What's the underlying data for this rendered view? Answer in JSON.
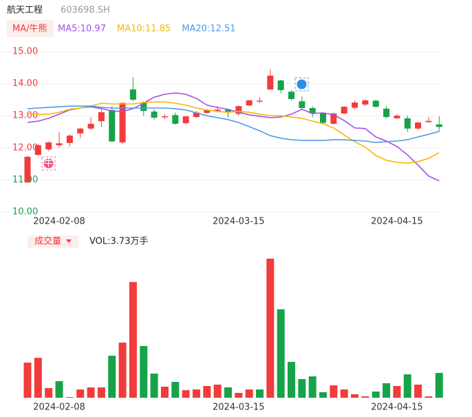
{
  "chart_data": [
    {
      "type": "candlestick",
      "title": "航天工程",
      "subtitle": "603698.SH",
      "button": "MA/牛熊",
      "categories": [
        null,
        null,
        null,
        "2024-02-08",
        null,
        null,
        null,
        null,
        null,
        null,
        null,
        null,
        null,
        null,
        null,
        null,
        null,
        null,
        null,
        null,
        "2024-03-15",
        null,
        null,
        null,
        null,
        null,
        null,
        null,
        null,
        null,
        null,
        null,
        null,
        null,
        null,
        "2024-04-15",
        null,
        null,
        null,
        null
      ],
      "open": [
        10.92,
        11.78,
        11.95,
        12.08,
        12.15,
        12.45,
        12.6,
        12.83,
        13.18,
        12.17,
        13.82,
        13.4,
        13.13,
        12.95,
        13.02,
        12.77,
        12.96,
        13.09,
        13.15,
        13.19,
        13.06,
        13.32,
        13.44,
        13.82,
        14.1,
        13.75,
        13.45,
        13.24,
        13.08,
        12.75,
        13.07,
        13.25,
        13.35,
        13.47,
        13.22,
        12.92,
        12.92,
        12.6,
        12.8,
        12.73
      ],
      "high": [
        11.75,
        12.12,
        12.2,
        12.5,
        12.42,
        12.62,
        12.95,
        13.2,
        13.3,
        13.42,
        14.2,
        13.45,
        13.2,
        13.05,
        13.1,
        13.0,
        13.15,
        13.2,
        13.3,
        13.2,
        13.32,
        13.5,
        13.58,
        14.45,
        14.12,
        13.8,
        13.6,
        13.3,
        13.1,
        13.1,
        13.3,
        13.48,
        13.5,
        13.5,
        13.3,
        13.05,
        13.0,
        12.8,
        12.95,
        12.98
      ],
      "low": [
        10.9,
        11.75,
        11.9,
        12.0,
        12.05,
        12.3,
        12.55,
        12.65,
        12.18,
        12.12,
        13.45,
        13.0,
        12.88,
        12.9,
        12.72,
        12.72,
        12.94,
        13.05,
        13.1,
        12.95,
        13.0,
        13.3,
        13.4,
        13.8,
        13.7,
        13.48,
        13.22,
        12.95,
        12.75,
        12.72,
        13.05,
        13.2,
        13.3,
        13.25,
        12.92,
        12.9,
        12.5,
        12.55,
        12.8,
        12.5
      ],
      "close": [
        11.72,
        12.08,
        12.17,
        12.14,
        12.38,
        12.6,
        12.75,
        13.11,
        12.2,
        13.4,
        13.5,
        13.15,
        12.94,
        12.98,
        12.75,
        12.98,
        13.1,
        13.17,
        13.19,
        13.11,
        13.3,
        13.48,
        13.47,
        14.25,
        13.8,
        13.52,
        13.24,
        13.07,
        12.78,
        13.07,
        13.28,
        13.41,
        13.48,
        13.28,
        12.96,
        13.0,
        12.6,
        12.79,
        12.84,
        12.65
      ],
      "up_color": "#f23b3b",
      "down_color": "#16a34a",
      "series": [
        {
          "name": "MA5:10.97",
          "color": "#a64ee8",
          "values": [
            12.79,
            12.83,
            12.92,
            13.05,
            13.18,
            13.24,
            13.28,
            13.22,
            13.15,
            13.13,
            13.22,
            13.39,
            13.58,
            13.67,
            13.71,
            13.67,
            13.54,
            13.33,
            13.26,
            13.2,
            13.11,
            13.03,
            12.98,
            12.94,
            12.96,
            13.05,
            13.2,
            13.07,
            13.09,
            13.03,
            12.85,
            12.62,
            12.6,
            12.34,
            12.21,
            12.04,
            11.78,
            11.46,
            11.12,
            10.97
          ]
        },
        {
          "name": "MA10:11.85",
          "color": "#f5b800",
          "values": [
            13.07,
            13.05,
            13.05,
            13.11,
            13.2,
            13.24,
            13.3,
            13.39,
            13.37,
            13.37,
            13.37,
            13.41,
            13.43,
            13.43,
            13.39,
            13.33,
            13.24,
            13.18,
            13.13,
            13.11,
            13.13,
            13.11,
            13.05,
            13.0,
            13.0,
            12.96,
            12.92,
            12.83,
            12.75,
            12.62,
            12.4,
            12.19,
            12.02,
            11.76,
            11.61,
            11.55,
            11.52,
            11.57,
            11.67,
            11.85
          ]
        },
        {
          "name": "MA20:12.51",
          "color": "#4c9be8",
          "values": [
            13.22,
            13.24,
            13.26,
            13.28,
            13.3,
            13.3,
            13.3,
            13.26,
            13.24,
            13.24,
            13.24,
            13.24,
            13.24,
            13.24,
            13.22,
            13.18,
            13.09,
            13.0,
            12.94,
            12.88,
            12.79,
            12.66,
            12.53,
            12.38,
            12.3,
            12.25,
            12.23,
            12.23,
            12.23,
            12.25,
            12.25,
            12.23,
            12.21,
            12.17,
            12.19,
            12.21,
            12.25,
            12.34,
            12.42,
            12.51
          ]
        }
      ],
      "annotations": [
        "牛"
      ],
      "ylim": [
        10,
        15
      ],
      "yticks": [
        {
          "value": 15,
          "label": "15.00"
        },
        {
          "value": 14,
          "label": "14.00"
        },
        {
          "value": 13,
          "label": "13.00"
        },
        {
          "value": 12,
          "label": "12.00"
        },
        {
          "value": 11,
          "label": "11.00"
        },
        {
          "value": 10,
          "label": "10.00"
        }
      ],
      "ytick_colors": [
        "#f23b3b",
        "#f23b3b",
        "#f23b3b",
        "#f23b3b",
        "#16a34a",
        "#16a34a"
      ],
      "grid": true
    },
    {
      "type": "bar",
      "title": "成交量",
      "subtitle": "VOL:3.73万手",
      "values": [
        5.28,
        6.0,
        1.45,
        2.49,
        0.1,
        1.24,
        1.55,
        1.55,
        6.32,
        8.29,
        17.4,
        7.77,
        3.63,
        1.66,
        2.38,
        1.14,
        1.24,
        1.76,
        1.97,
        1.55,
        0.73,
        1.24,
        1.24,
        20.9,
        13.3,
        5.39,
        2.8,
        3.21,
        0.83,
        1.86,
        1.24,
        0.52,
        0.21,
        0.93,
        2.18,
        1.76,
        3.52,
        1.97,
        0.21,
        3.73
      ],
      "ylim": [
        0,
        21
      ]
    }
  ]
}
